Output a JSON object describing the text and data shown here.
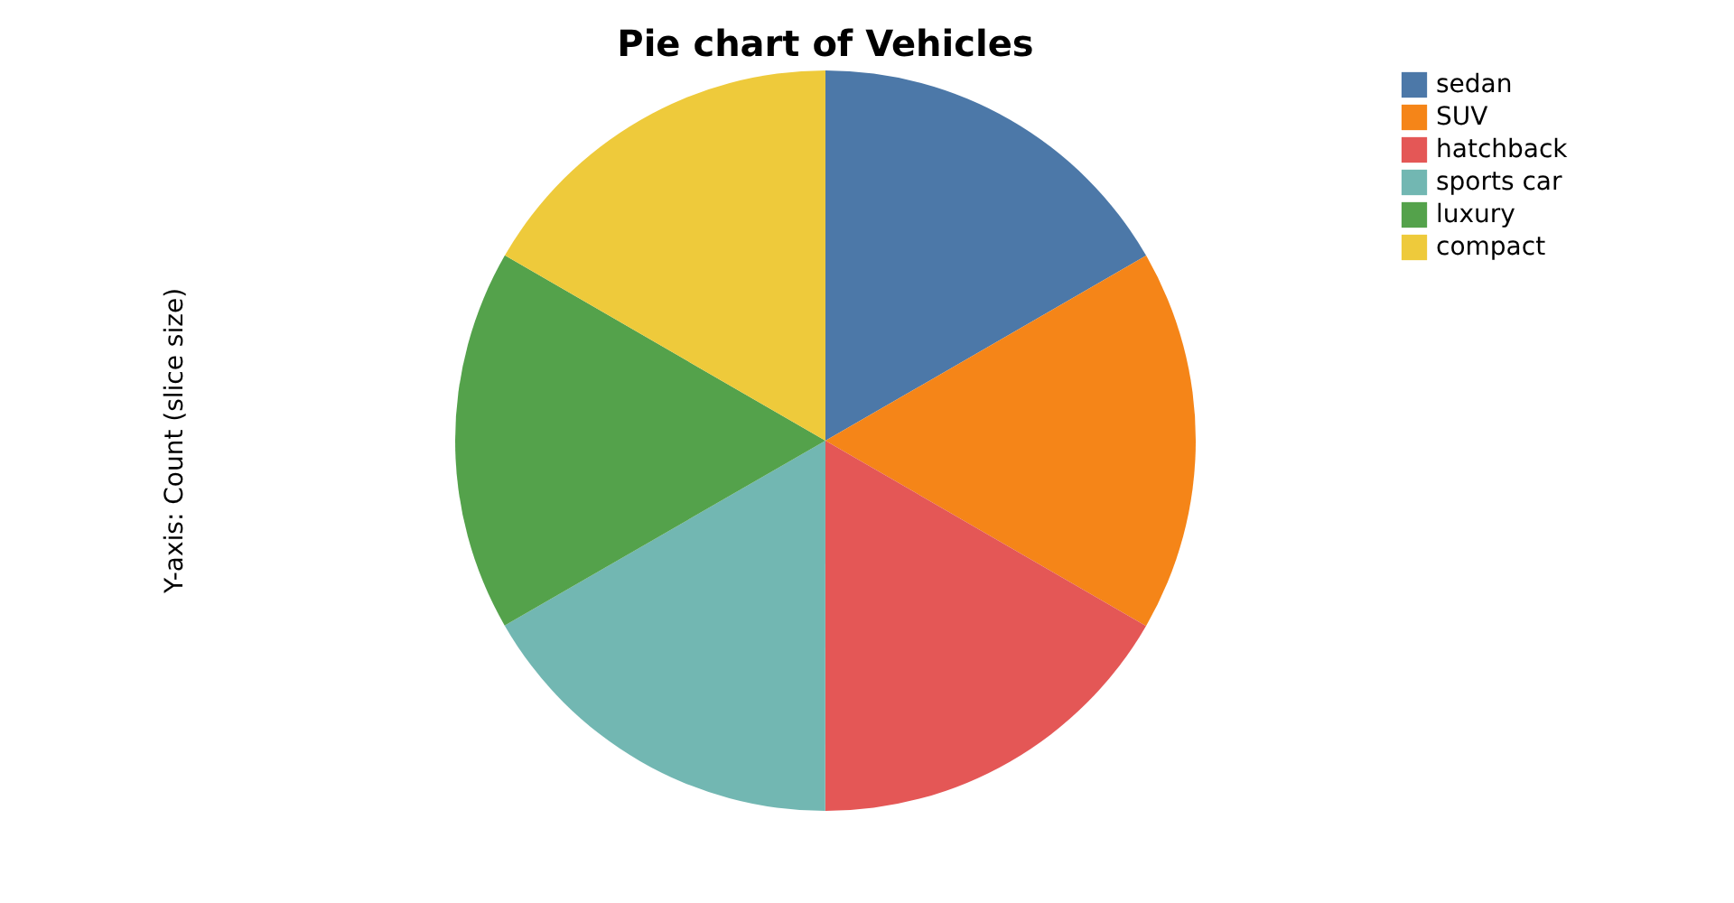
{
  "chart_data": {
    "type": "pie",
    "title": "Pie chart of Vehicles",
    "ylabel": "Y-axis: Count (slice size)",
    "categories": [
      "sedan",
      "SUV",
      "hatchback",
      "sports car",
      "luxury",
      "compact"
    ],
    "values": [
      16.67,
      16.67,
      16.67,
      16.67,
      16.66,
      16.66
    ],
    "colors": [
      "#4c78a8",
      "#f58518",
      "#e45756",
      "#72b7b2",
      "#54a24b",
      "#eeca3b"
    ],
    "legend": "right"
  }
}
